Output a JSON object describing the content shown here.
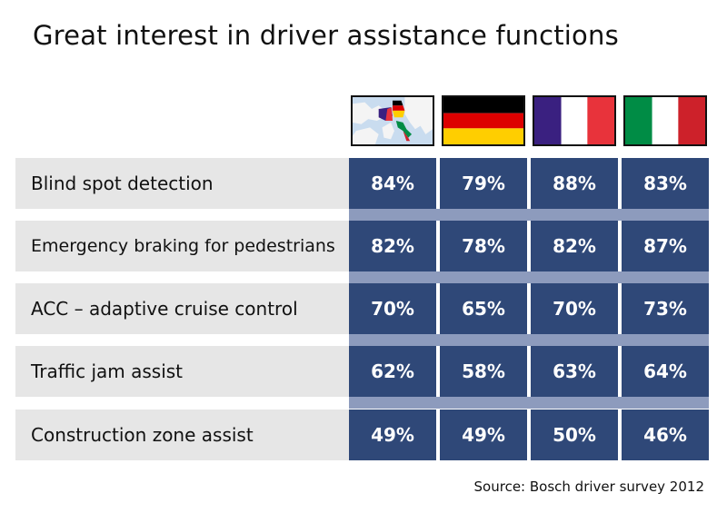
{
  "title": "Great interest in driver assistance functions",
  "source": "Source: Bosch driver survey 2012",
  "flags": [
    {
      "icon": "europe-map-flags-icon"
    },
    {
      "icon": "germany-flag-icon",
      "colors": [
        "#000000",
        "#dd0000",
        "#ffce00"
      ]
    },
    {
      "icon": "france-flag-icon",
      "colors": [
        "#3a2080",
        "#ffffff",
        "#e8333b"
      ]
    },
    {
      "icon": "italy-flag-icon",
      "colors": [
        "#008c45",
        "#ffffff",
        "#cd212a"
      ]
    }
  ],
  "colors": {
    "value_cell": "#2f4878",
    "label_cell": "#e6e6e6",
    "row_spacer": "#8d9bbd"
  },
  "chart_data": {
    "type": "table",
    "title": "Great interest in driver assistance functions",
    "rows": [
      {
        "label": "Blind spot detection",
        "values": [
          "84%",
          "79%",
          "88%",
          "83%"
        ]
      },
      {
        "label": "Emergency braking for pedestrians",
        "values": [
          "82%",
          "78%",
          "82%",
          "87%"
        ]
      },
      {
        "label": "ACC – adaptive cruise control",
        "values": [
          "70%",
          "65%",
          "70%",
          "73%"
        ]
      },
      {
        "label": "Traffic jam assist",
        "values": [
          "62%",
          "58%",
          "63%",
          "64%"
        ]
      },
      {
        "label": "Construction zone assist",
        "values": [
          "49%",
          "49%",
          "50%",
          "46%"
        ]
      }
    ]
  }
}
